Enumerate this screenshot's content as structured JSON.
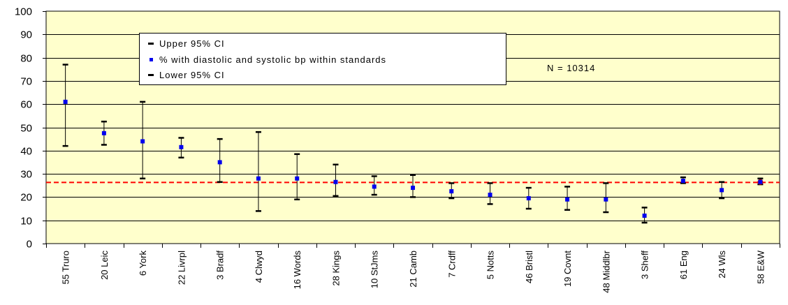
{
  "chart_data": {
    "type": "error-bar",
    "y_axis": {
      "min": 0,
      "max": 100,
      "ticks": [
        0,
        10,
        20,
        30,
        40,
        50,
        60,
        70,
        80,
        90,
        100
      ]
    },
    "categories": [
      "55 Truro",
      "20 Leic",
      "6 York",
      "22 Livrpl",
      "3 Bradf",
      "4 Clwyd",
      "16 Words",
      "28 Kings",
      "10 StJms",
      "21 Camb",
      "7 Crdff",
      "5 Notts",
      "46 Bristl",
      "19 Covnt",
      "48 Middlbr",
      "3 Sheff",
      "61 Eng",
      "24 Wls",
      "58 E&W"
    ],
    "series": [
      {
        "name": "Upper 95% CI",
        "values": [
          77,
          52.5,
          61,
          45.5,
          45,
          48,
          38.5,
          34,
          29,
          29.5,
          26,
          26,
          24,
          24.5,
          26,
          15.5,
          28.5,
          26.5,
          28
        ]
      },
      {
        "name": "% with diastolic and systolic bp within standards",
        "values": [
          61,
          47.5,
          44,
          41.5,
          35,
          28,
          28,
          26.5,
          24.5,
          24,
          22.5,
          21,
          19.5,
          19,
          19,
          12,
          27,
          23,
          26.5
        ]
      },
      {
        "name": "Lower 95% CI",
        "values": [
          42,
          42.5,
          28,
          37,
          26.5,
          14,
          19,
          20.5,
          21,
          20,
          19.5,
          17,
          15,
          14.5,
          13.5,
          9,
          26,
          19.5,
          25.5
        ]
      }
    ],
    "reference_line": {
      "value": 26.3,
      "color": "#ff0000",
      "style": "dashed"
    },
    "highlight_point": {
      "category": "58 E&W",
      "color": "#cc0000"
    },
    "annotation": "N = 10314",
    "colors": {
      "plot_background": "#ffffcc",
      "point": "#0000ee",
      "whisker": "#000000",
      "gridline": "#000000"
    },
    "grid": true,
    "legend_position": "top-left inside plot"
  }
}
